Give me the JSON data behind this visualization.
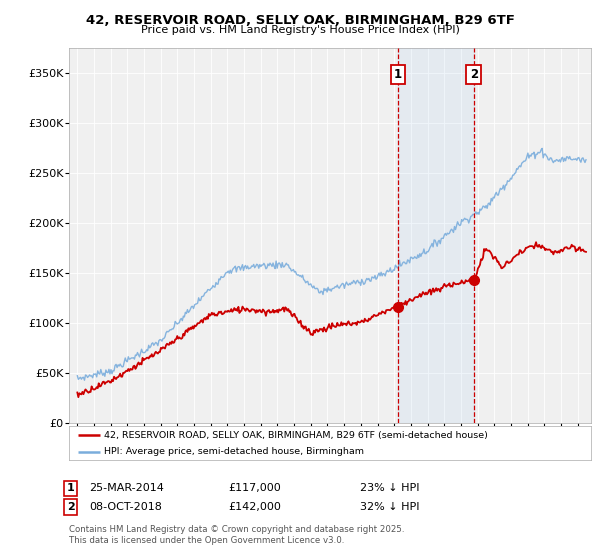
{
  "title_line1": "42, RESERVOIR ROAD, SELLY OAK, BIRMINGHAM, B29 6TF",
  "title_line2": "Price paid vs. HM Land Registry's House Price Index (HPI)",
  "background_color": "#ffffff",
  "plot_bg_color": "#f0f0f0",
  "hpi_color": "#7aaddc",
  "paid_color": "#cc0000",
  "marker1_x": 2014.23,
  "marker2_x": 2018.77,
  "legend_paid": "42, RESERVOIR ROAD, SELLY OAK, BIRMINGHAM, B29 6TF (semi-detached house)",
  "legend_hpi": "HPI: Average price, semi-detached house, Birmingham",
  "footer": "Contains HM Land Registry data © Crown copyright and database right 2025.\nThis data is licensed under the Open Government Licence v3.0.",
  "ylim_min": 0,
  "ylim_max": 375000,
  "yticks": [
    0,
    50000,
    100000,
    150000,
    200000,
    250000,
    300000,
    350000
  ],
  "ytick_labels": [
    "£0",
    "£50K",
    "£100K",
    "£150K",
    "£200K",
    "£250K",
    "£300K",
    "£350K"
  ],
  "xlim_min": 1994.5,
  "xlim_max": 2025.8
}
